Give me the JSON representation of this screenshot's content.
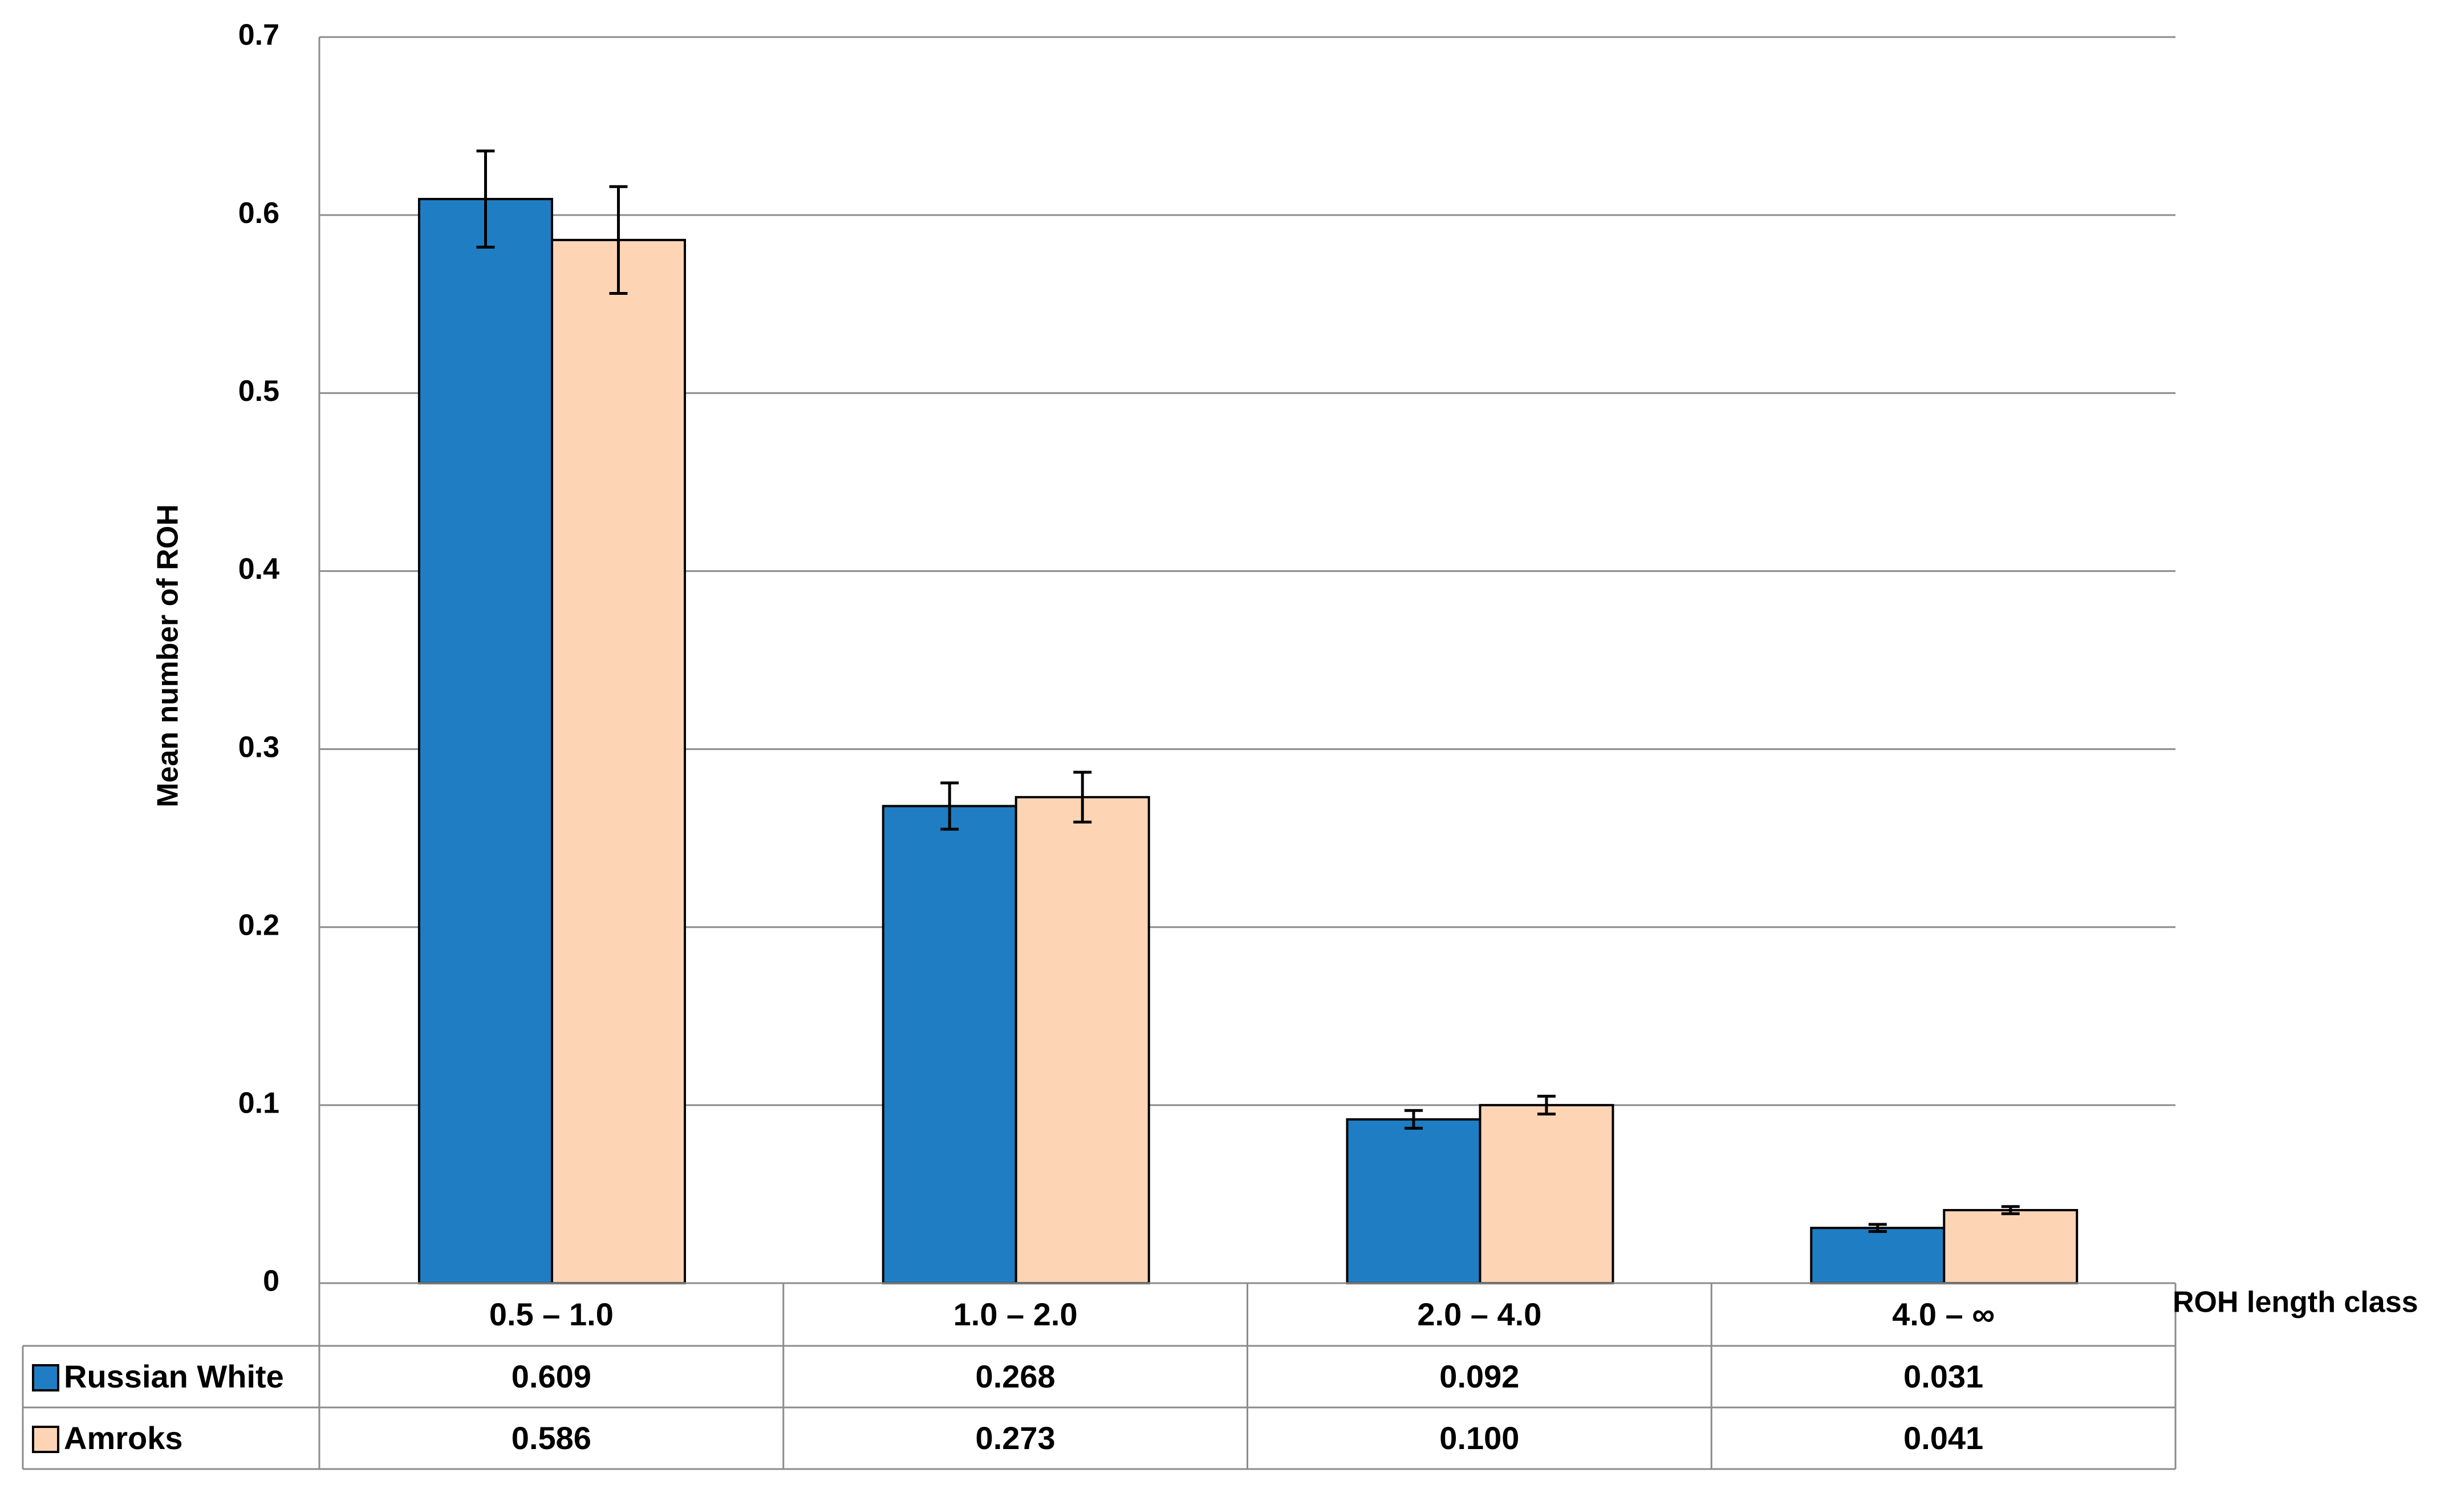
{
  "chart_data": {
    "type": "bar",
    "xlabel": "ROH length class",
    "ylabel": "Mean number of ROH",
    "ylim": [
      0,
      0.7
    ],
    "yticks": [
      0,
      0.1,
      0.2,
      0.3,
      0.4,
      0.5,
      0.6,
      0.7
    ],
    "ytick_labels": [
      "0",
      "0.1",
      "0.2",
      "0.3",
      "0.4",
      "0.5",
      "0.6",
      "0.7"
    ],
    "grid": true,
    "legend_placement": "data table (left)",
    "categories": [
      "0.5 – 1.0",
      "1.0 – 2.0",
      "2.0 – 4.0",
      "4.0 – ∞"
    ],
    "series": [
      {
        "name": "Russian White",
        "color": "#1f7ec3",
        "values": [
          0.609,
          0.268,
          0.092,
          0.031
        ],
        "value_labels": [
          "0.609",
          "0.268",
          "0.092",
          "0.031"
        ],
        "error": [
          0.027,
          0.013,
          0.005,
          0.002
        ]
      },
      {
        "name": "Amroks",
        "color": "#fdd5b5",
        "values": [
          0.586,
          0.273,
          0.1,
          0.041
        ],
        "value_labels": [
          "0.586",
          "0.273",
          "0.100",
          "0.041"
        ],
        "error": [
          0.03,
          0.014,
          0.005,
          0.002
        ]
      }
    ]
  }
}
